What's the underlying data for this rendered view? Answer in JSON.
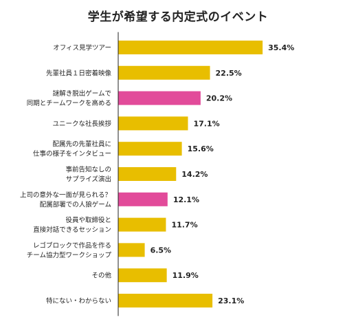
{
  "chart_data": {
    "type": "bar",
    "orientation": "horizontal",
    "title": "学生が希望する内定式のイベント",
    "xlabel": "",
    "ylabel": "",
    "xlim": [
      0,
      40
    ],
    "grid": false,
    "legend": "none",
    "unit": "%",
    "categories": [
      [
        "オフィス見学ツアー"
      ],
      [
        "先輩社員１日密着映像"
      ],
      [
        "謎解き脱出ゲームで",
        "同期とチームワークを高める"
      ],
      [
        "ユニークな社長挨拶"
      ],
      [
        "配属先の先輩社員に",
        "仕事の様子をインタビュー"
      ],
      [
        "事前告知なしの",
        "サプライズ演出"
      ],
      [
        "上司の意外な一面が見られる？",
        "配属部署での人狼ゲーム"
      ],
      [
        "役員や取締役と",
        "直接対話できるセッション"
      ],
      [
        "レゴブロックで作品を作る",
        "チーム協力型ワークショップ"
      ],
      [
        "その他"
      ],
      [
        "特にない・わからない"
      ]
    ],
    "values": [
      35.4,
      22.5,
      20.2,
      17.1,
      15.6,
      14.2,
      12.1,
      11.7,
      6.5,
      11.9,
      23.1
    ],
    "value_labels": [
      "35.4%",
      "22.5%",
      "20.2%",
      "17.1%",
      "15.6%",
      "14.2%",
      "12.1%",
      "11.7%",
      "6.5%",
      "11.9%",
      "23.1%"
    ],
    "highlight": [
      false,
      false,
      true,
      false,
      false,
      false,
      true,
      false,
      false,
      false,
      false
    ],
    "colors": {
      "default": "#E8BE00",
      "highlight": "#E24B9A",
      "axis": "#222222"
    }
  }
}
